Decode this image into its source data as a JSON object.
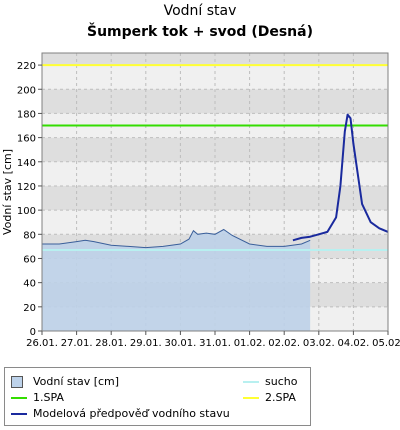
{
  "chart_data": {
    "type": "line",
    "title": "Vodní stav",
    "subtitle": "Šumperk tok + svod (Desná)",
    "ylabel": "Vodní stav [cm]",
    "xlabel": "",
    "ylim": [
      0,
      230
    ],
    "yticks": [
      0,
      20,
      40,
      60,
      80,
      100,
      120,
      140,
      160,
      180,
      200,
      220
    ],
    "x_ticks": [
      "26.01.",
      "27.01.",
      "28.01.",
      "29.01.",
      "30.01.",
      "31.01.",
      "01.02.",
      "02.02.",
      "03.02.",
      "04.02.",
      "05.02."
    ],
    "grid": true,
    "legend_position": "bottom-left",
    "series": [
      {
        "name": "Vodní stav [cm]",
        "kind": "area",
        "color": "#6f9fd8",
        "points": [
          [
            "26.01.",
            72
          ],
          [
            "26.01. 12:00",
            72
          ],
          [
            "27.01.",
            74
          ],
          [
            "27.01. 06:00",
            75
          ],
          [
            "27.01. 12:00",
            74
          ],
          [
            "28.01.",
            71
          ],
          [
            "28.01. 12:00",
            70
          ],
          [
            "29.01.",
            69
          ],
          [
            "29.01. 12:00",
            70
          ],
          [
            "30.01.",
            72
          ],
          [
            "30.01. 06:00",
            76
          ],
          [
            "30.01. 09:00",
            83
          ],
          [
            "30.01. 12:00",
            80
          ],
          [
            "30.01. 18:00",
            81
          ],
          [
            "31.01.",
            80
          ],
          [
            "31.01. 06:00",
            84
          ],
          [
            "31.01. 12:00",
            79
          ],
          [
            "01.02.",
            72
          ],
          [
            "01.02. 12:00",
            70
          ],
          [
            "02.02.",
            70
          ],
          [
            "02.02. 12:00",
            72
          ],
          [
            "02.02. 18:00",
            75
          ]
        ]
      },
      {
        "name": "Modelová předpověď vodního stavu",
        "kind": "line",
        "color": "#1a2a9e",
        "points": [
          [
            "02.02. 06:00",
            75
          ],
          [
            "02.02. 12:00",
            77
          ],
          [
            "02.02. 18:00",
            78
          ],
          [
            "03.02.",
            80
          ],
          [
            "03.02. 06:00",
            82
          ],
          [
            "03.02. 12:00",
            94
          ],
          [
            "03.02. 15:00",
            120
          ],
          [
            "03.02. 18:00",
            165
          ],
          [
            "03.02. 20:00",
            179
          ],
          [
            "03.02. 22:00",
            176
          ],
          [
            "04.02.",
            155
          ],
          [
            "04.02. 06:00",
            105
          ],
          [
            "04.02. 12:00",
            90
          ],
          [
            "04.02. 18:00",
            85
          ],
          [
            "05.02.",
            82
          ]
        ]
      },
      {
        "name": "sucho",
        "kind": "hline",
        "color": "#b8f0f0",
        "value": 67
      },
      {
        "name": "1.SPA",
        "kind": "hline",
        "color": "#33dd00",
        "value": 170
      },
      {
        "name": "2.SPA",
        "kind": "hline",
        "color": "#ffff33",
        "value": 220
      }
    ]
  },
  "legend": {
    "items": [
      {
        "label": "Vodní stav [cm]",
        "symbol": "box",
        "color": "#bdd2ea"
      },
      {
        "label": "sucho",
        "symbol": "line",
        "color": "#b8f0f0"
      },
      {
        "label": "1.SPA",
        "symbol": "line",
        "color": "#33dd00"
      },
      {
        "label": "2.SPA",
        "symbol": "line",
        "color": "#ffff33"
      },
      {
        "label": "Modelová předpověď vodního stavu",
        "symbol": "line",
        "color": "#1a2a9e"
      }
    ]
  },
  "colors": {
    "band_dark": "#dedede",
    "band_light": "#f0f0f0",
    "observed_fill": "#bcd0e8",
    "observed_line": "#3a5f9a"
  }
}
